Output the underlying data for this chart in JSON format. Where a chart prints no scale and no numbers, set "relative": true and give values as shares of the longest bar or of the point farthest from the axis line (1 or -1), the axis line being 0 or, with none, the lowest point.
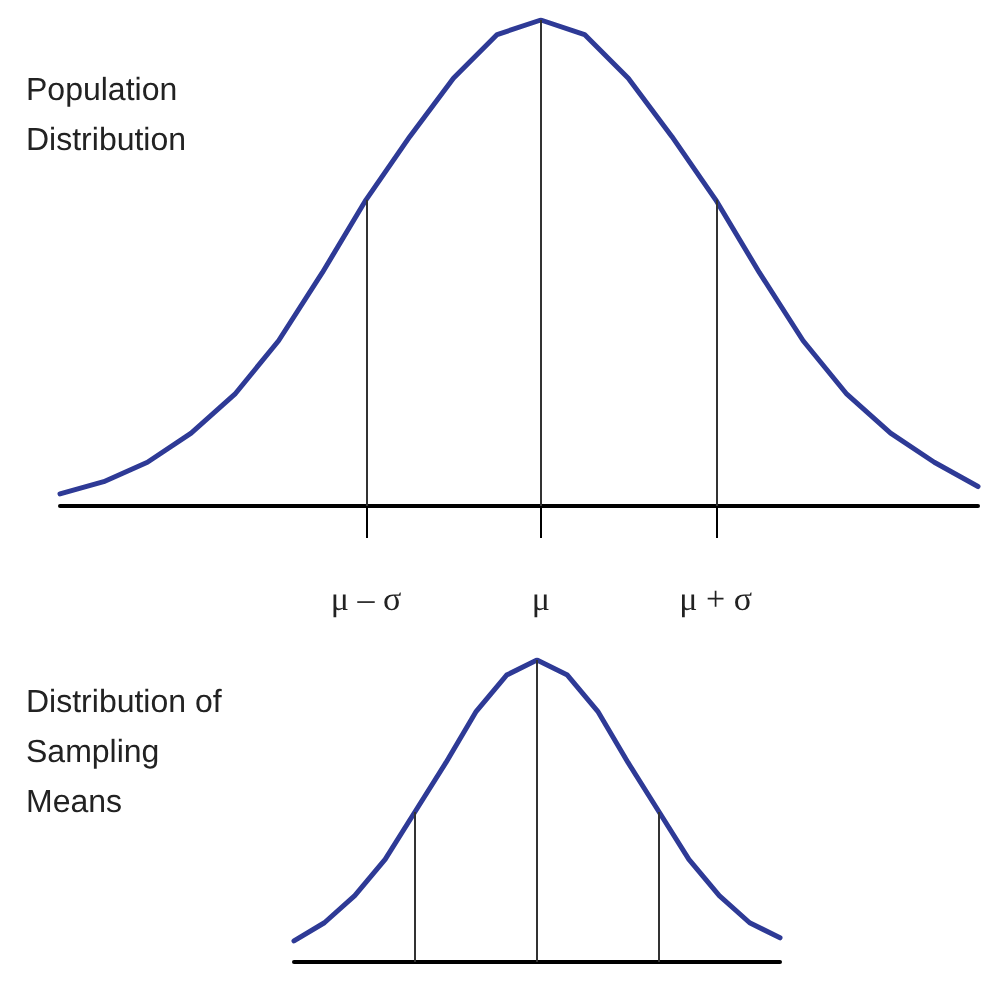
{
  "chart_data": [
    {
      "type": "line",
      "title": "Population Distribution",
      "relative": true,
      "marker": "none",
      "line_style": "solid",
      "tick_labels": "x",
      "categories": [
        null,
        null,
        null,
        null,
        null,
        null,
        null,
        "μ – σ",
        null,
        null,
        null,
        "μ",
        null,
        null,
        null,
        "μ + σ",
        null,
        null,
        null,
        null,
        null,
        null
      ],
      "series": [
        {
          "color": "#2e3a96",
          "values": [
            0.025,
            0.05,
            0.09,
            0.15,
            0.23,
            0.34,
            0.48,
            0.63,
            0.76,
            0.88,
            0.97,
            1,
            0.97,
            0.88,
            0.76,
            0.63,
            0.48,
            0.34,
            0.23,
            0.15,
            0.09,
            0.04
          ]
        }
      ],
      "ref_lines": [
        {
          "axis": "x",
          "value": "μ – σ",
          "color": "#333333"
        },
        {
          "axis": "x",
          "value": "μ",
          "color": "#333333"
        },
        {
          "axis": "x",
          "value": "μ + σ",
          "color": "#333333"
        }
      ]
    },
    {
      "type": "line",
      "title": "Distribution of Sampling Means",
      "relative": true,
      "marker": "none",
      "line_style": "solid",
      "tick_labels": false,
      "categories": [
        null,
        null,
        null,
        null,
        null,
        null,
        null,
        null,
        null,
        null,
        null,
        null,
        null,
        null,
        null,
        null,
        null
      ],
      "series": [
        {
          "color": "#2e3a96",
          "values": [
            0.07,
            0.13,
            0.22,
            0.34,
            0.5,
            0.66,
            0.83,
            0.95,
            1,
            0.95,
            0.83,
            0.66,
            0.5,
            0.34,
            0.22,
            0.13,
            0.08
          ]
        }
      ]
    }
  ]
}
